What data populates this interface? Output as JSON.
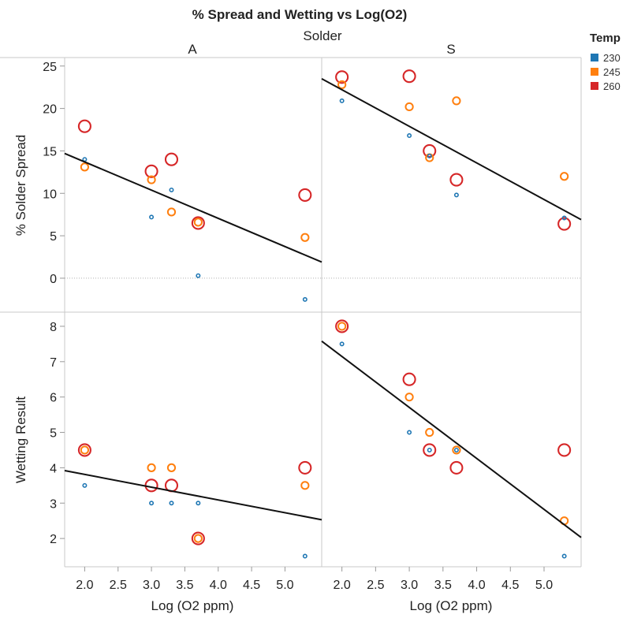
{
  "chart_data": {
    "type": "scatter",
    "title": "% Spread and Wetting vs Log(O2)",
    "column_header": "Solder",
    "columns": [
      "A",
      "S"
    ],
    "rows": [
      {
        "key": "spread",
        "ylabel": "% Solder Spread",
        "ylim": [
          -4,
          26
        ],
        "yticks": [
          0,
          5,
          10,
          15,
          20,
          25
        ],
        "zero_line": true
      },
      {
        "key": "wetting",
        "ylabel": "Wetting Result",
        "ylim": [
          1.2,
          8.4
        ],
        "yticks": [
          2,
          3,
          4,
          5,
          6,
          7,
          8
        ],
        "zero_line": false
      }
    ],
    "xlabel": "Log (O2 ppm)",
    "xlim": [
      1.7,
      5.55
    ],
    "xticks": [
      2.0,
      2.5,
      3.0,
      3.5,
      4.0,
      4.5,
      5.0
    ],
    "legend": {
      "title": "Temp",
      "position": "top-right",
      "entries": [
        {
          "label": "230",
          "color": "#1f77b4"
        },
        {
          "label": "245",
          "color": "#ff7f0e"
        },
        {
          "label": "260",
          "color": "#d62728"
        }
      ]
    },
    "panels": [
      {
        "row": "spread",
        "column": "A",
        "trend": [
          [
            1.7,
            14.7
          ],
          [
            5.55,
            1.9
          ]
        ],
        "points": [
          {
            "x": 2.0,
            "y": 14.0,
            "temp": "230"
          },
          {
            "x": 3.0,
            "y": 7.2,
            "temp": "230"
          },
          {
            "x": 3.3,
            "y": 10.4,
            "temp": "230"
          },
          {
            "x": 3.7,
            "y": 0.3,
            "temp": "230"
          },
          {
            "x": 5.3,
            "y": -2.5,
            "temp": "230"
          },
          {
            "x": 2.0,
            "y": 13.1,
            "temp": "245"
          },
          {
            "x": 3.0,
            "y": 11.6,
            "temp": "245"
          },
          {
            "x": 3.3,
            "y": 7.8,
            "temp": "245"
          },
          {
            "x": 3.7,
            "y": 6.6,
            "temp": "245"
          },
          {
            "x": 5.3,
            "y": 4.8,
            "temp": "245"
          },
          {
            "x": 2.0,
            "y": 17.9,
            "temp": "260"
          },
          {
            "x": 3.0,
            "y": 12.6,
            "temp": "260"
          },
          {
            "x": 3.3,
            "y": 14.0,
            "temp": "260"
          },
          {
            "x": 3.7,
            "y": 6.5,
            "temp": "260"
          },
          {
            "x": 5.3,
            "y": 9.8,
            "temp": "260"
          }
        ]
      },
      {
        "row": "spread",
        "column": "S",
        "trend": [
          [
            1.7,
            23.5
          ],
          [
            5.55,
            6.9
          ]
        ],
        "points": [
          {
            "x": 2.0,
            "y": 20.9,
            "temp": "230"
          },
          {
            "x": 3.0,
            "y": 16.8,
            "temp": "230"
          },
          {
            "x": 3.3,
            "y": 14.4,
            "temp": "230"
          },
          {
            "x": 3.7,
            "y": 9.8,
            "temp": "230"
          },
          {
            "x": 5.3,
            "y": 7.1,
            "temp": "230"
          },
          {
            "x": 2.0,
            "y": 22.8,
            "temp": "245"
          },
          {
            "x": 3.0,
            "y": 20.2,
            "temp": "245"
          },
          {
            "x": 3.3,
            "y": 14.2,
            "temp": "245"
          },
          {
            "x": 3.7,
            "y": 20.9,
            "temp": "245"
          },
          {
            "x": 5.3,
            "y": 12.0,
            "temp": "245"
          },
          {
            "x": 2.0,
            "y": 23.7,
            "temp": "260"
          },
          {
            "x": 3.0,
            "y": 23.8,
            "temp": "260"
          },
          {
            "x": 3.3,
            "y": 15.0,
            "temp": "260"
          },
          {
            "x": 3.7,
            "y": 11.6,
            "temp": "260"
          },
          {
            "x": 5.3,
            "y": 6.4,
            "temp": "260"
          }
        ]
      },
      {
        "row": "wetting",
        "column": "A",
        "trend": [
          [
            1.7,
            3.92
          ],
          [
            5.55,
            2.53
          ]
        ],
        "points": [
          {
            "x": 2.0,
            "y": 3.5,
            "temp": "230"
          },
          {
            "x": 3.0,
            "y": 3.0,
            "temp": "230"
          },
          {
            "x": 3.3,
            "y": 3.0,
            "temp": "230"
          },
          {
            "x": 3.7,
            "y": 3.0,
            "temp": "230"
          },
          {
            "x": 5.3,
            "y": 1.5,
            "temp": "230"
          },
          {
            "x": 2.0,
            "y": 4.5,
            "temp": "245"
          },
          {
            "x": 3.0,
            "y": 4.0,
            "temp": "245"
          },
          {
            "x": 3.3,
            "y": 4.0,
            "temp": "245"
          },
          {
            "x": 3.7,
            "y": 2.0,
            "temp": "245"
          },
          {
            "x": 5.3,
            "y": 3.5,
            "temp": "245"
          },
          {
            "x": 2.0,
            "y": 4.5,
            "temp": "260"
          },
          {
            "x": 3.0,
            "y": 3.5,
            "temp": "260"
          },
          {
            "x": 3.3,
            "y": 3.5,
            "temp": "260"
          },
          {
            "x": 3.7,
            "y": 2.0,
            "temp": "260"
          },
          {
            "x": 5.3,
            "y": 4.0,
            "temp": "260"
          }
        ]
      },
      {
        "row": "wetting",
        "column": "S",
        "trend": [
          [
            1.7,
            7.58
          ],
          [
            5.55,
            2.03
          ]
        ],
        "points": [
          {
            "x": 2.0,
            "y": 7.5,
            "temp": "230"
          },
          {
            "x": 3.0,
            "y": 5.0,
            "temp": "230"
          },
          {
            "x": 3.3,
            "y": 4.5,
            "temp": "230"
          },
          {
            "x": 3.7,
            "y": 4.5,
            "temp": "230"
          },
          {
            "x": 5.3,
            "y": 1.5,
            "temp": "230"
          },
          {
            "x": 2.0,
            "y": 8.0,
            "temp": "245"
          },
          {
            "x": 3.0,
            "y": 6.0,
            "temp": "245"
          },
          {
            "x": 3.3,
            "y": 5.0,
            "temp": "245"
          },
          {
            "x": 3.7,
            "y": 4.5,
            "temp": "245"
          },
          {
            "x": 5.3,
            "y": 2.5,
            "temp": "245"
          },
          {
            "x": 2.0,
            "y": 8.0,
            "temp": "260"
          },
          {
            "x": 3.0,
            "y": 6.5,
            "temp": "260"
          },
          {
            "x": 3.3,
            "y": 4.5,
            "temp": "260"
          },
          {
            "x": 3.7,
            "y": 4.0,
            "temp": "260"
          },
          {
            "x": 5.3,
            "y": 4.5,
            "temp": "260"
          }
        ]
      }
    ]
  }
}
